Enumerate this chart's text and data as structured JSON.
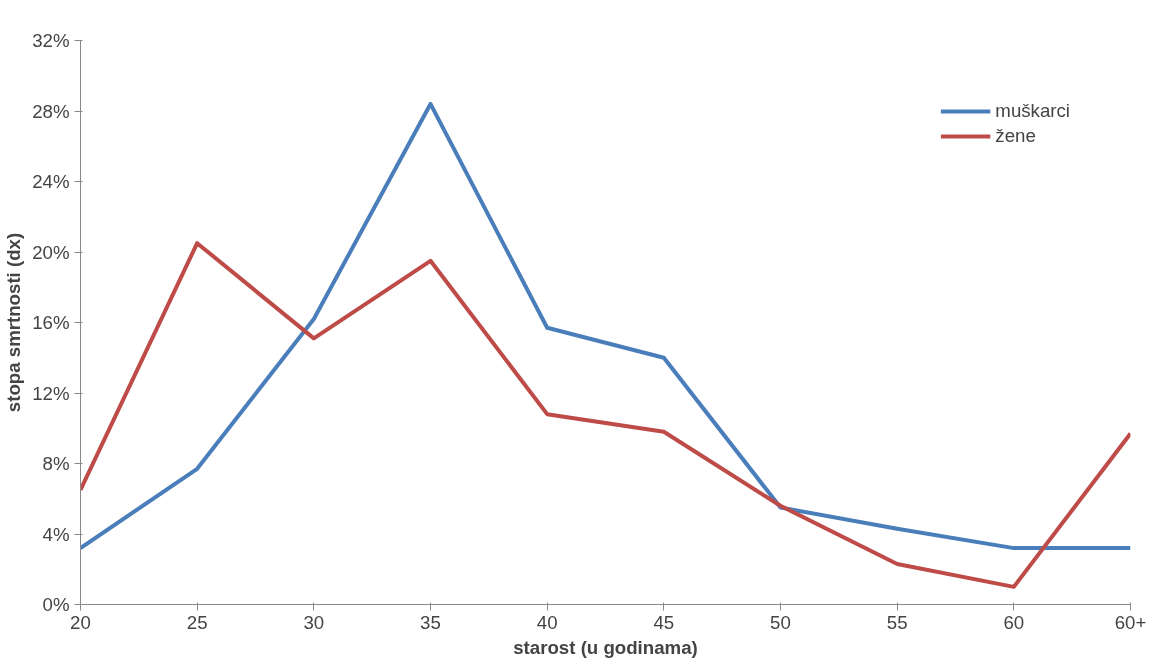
{
  "chart_data": {
    "type": "line",
    "xlabel": "starost (u godinama)",
    "ylabel": "stopa smrtnosti (dx)",
    "categories": [
      "20",
      "25",
      "30",
      "35",
      "40",
      "45",
      "50",
      "55",
      "60",
      "60+"
    ],
    "series": [
      {
        "name": "muškarci",
        "color": "#4a7ebb",
        "values": [
          3.2,
          7.7,
          16.2,
          28.4,
          15.7,
          14,
          5.5,
          4.3,
          3.2,
          3.2
        ]
      },
      {
        "name": "žene",
        "color": "#be4b48",
        "values": [
          6.5,
          20.5,
          15.1,
          19.5,
          10.8,
          9.8,
          5.6,
          2.3,
          1.0,
          9.7
        ]
      }
    ],
    "ylim": [
      0,
      32
    ],
    "yticks": [
      {
        "value": 0,
        "label": "0%"
      },
      {
        "value": 4,
        "label": "4%"
      },
      {
        "value": 8,
        "label": "8%"
      },
      {
        "value": 12,
        "label": "12%"
      },
      {
        "value": 16,
        "label": "16%"
      },
      {
        "value": 20,
        "label": "20%"
      },
      {
        "value": 24,
        "label": "24%"
      },
      {
        "value": 28,
        "label": "28%"
      },
      {
        "value": 32,
        "label": "32%"
      }
    ],
    "grid": false,
    "legend": "top right",
    "marker": "none",
    "line_style": "solid"
  }
}
